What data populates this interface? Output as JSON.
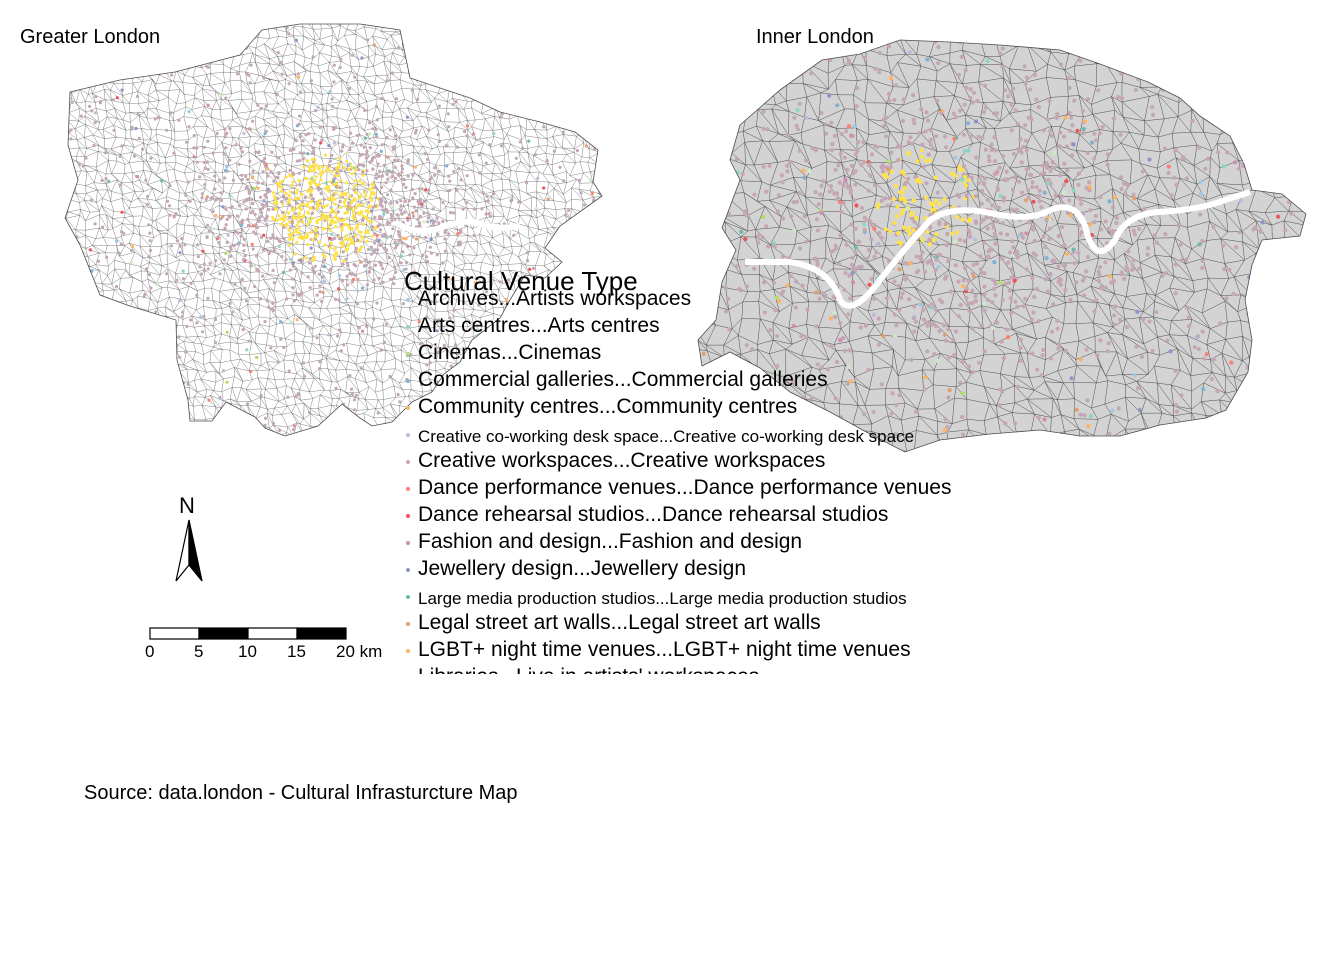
{
  "panels": {
    "greater_title": "Greater London",
    "inner_title": "Inner London"
  },
  "legend": {
    "title": "Cultural Venue Type",
    "items": [
      {
        "label": "Archives...Artists workspaces",
        "color": "#9ecae1",
        "size": "normal"
      },
      {
        "label": "Arts centres...Arts centres",
        "color": "#8dd3c7",
        "size": "normal"
      },
      {
        "label": "Cinemas...Cinemas",
        "color": "#b3de69",
        "size": "normal"
      },
      {
        "label": "Commercial galleries...Commercial galleries",
        "color": "#80b1d3",
        "size": "normal"
      },
      {
        "label": "Community centres...Community centres",
        "color": "#fdb462",
        "size": "normal"
      },
      {
        "label": "Creative co-working desk space...Creative co-working desk space",
        "color": "#bebada",
        "size": "small"
      },
      {
        "label": "Creative workspaces...Creative workspaces",
        "color": "#c4a6b4",
        "size": "normal"
      },
      {
        "label": "Dance performance venues...Dance performance venues",
        "color": "#fb8072",
        "size": "normal"
      },
      {
        "label": "Dance rehearsal studios...Dance rehearsal studios",
        "color": "#e9575b",
        "size": "normal"
      },
      {
        "label": "Fashion and design...Fashion and design",
        "color": "#d08bb0",
        "size": "normal"
      },
      {
        "label": "Jewellery design...Jewellery design",
        "color": "#8c96c6",
        "size": "normal"
      },
      {
        "label": "Large media production studios...Large media production studios",
        "color": "#6fb7b0",
        "size": "small"
      },
      {
        "label": "Legal street art walls...Legal street art walls",
        "color": "#e0a070",
        "size": "normal"
      },
      {
        "label": "LGBT+ night time venues...LGBT+ night time venues",
        "color": "#fdb462",
        "size": "normal"
      },
      {
        "label": "Libraries...Live in artists' workspaces",
        "color": "#ccebc5",
        "size": "normal"
      }
    ]
  },
  "north_arrow": {
    "letter": "N"
  },
  "scale_bar": {
    "labels": [
      "0",
      "5",
      "10",
      "15",
      "20 km"
    ]
  },
  "source": "Source: data.london - Cultural Infrasturcture Map",
  "map_colors": {
    "boundary": "#4d4d4d",
    "inner_fill": "#d3d3d3",
    "river": "#ffffff",
    "venue_dominant": "#c4a6b4",
    "venue_highlight": "#ffe24a"
  }
}
